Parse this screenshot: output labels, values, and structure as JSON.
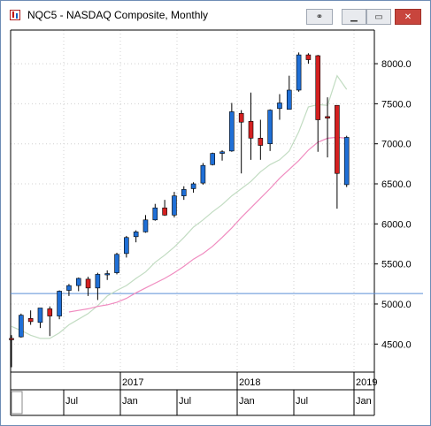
{
  "window": {
    "title": "NQC5 - NASDAQ Composite, Monthly",
    "icons": [
      "chart-app-icon",
      "link-icon",
      "minimize-icon",
      "maximize-icon",
      "close-icon"
    ]
  },
  "colors": {
    "up": "#1f6fd6",
    "down": "#d42020",
    "ma_short": "#c2dcc2",
    "ma_long": "#f08cc0",
    "hline": "#5a8fd8",
    "grid": "#d0d0d0"
  },
  "chart_data": {
    "type": "candlestick",
    "title": "",
    "xlabel": "",
    "ylabel": "",
    "ylim": [
      4150,
      8420
    ],
    "y_ticks": [
      "4500.0",
      "5000.0",
      "5500.0",
      "6000.0",
      "6500.0",
      "7000.0",
      "7500.0",
      "8000.0"
    ],
    "x_year_labels": [
      "2017",
      "2018",
      "2019"
    ],
    "x_month_labels": [
      "Jul",
      "Jan",
      "Jul",
      "Jan",
      "Jul",
      "Jan"
    ],
    "grid": true,
    "horizontal_line": 5130,
    "candles": [
      {
        "o": 4570,
        "h": 4610,
        "l": 4210,
        "c": 4560
      },
      {
        "o": 4590,
        "h": 4880,
        "l": 4580,
        "c": 4860
      },
      {
        "o": 4820,
        "h": 4920,
        "l": 4740,
        "c": 4780
      },
      {
        "o": 4770,
        "h": 4950,
        "l": 4700,
        "c": 4950
      },
      {
        "o": 4940,
        "h": 4970,
        "l": 4600,
        "c": 4850
      },
      {
        "o": 4850,
        "h": 5170,
        "l": 4810,
        "c": 5160
      },
      {
        "o": 5170,
        "h": 5250,
        "l": 5100,
        "c": 5230
      },
      {
        "o": 5230,
        "h": 5330,
        "l": 5160,
        "c": 5320
      },
      {
        "o": 5310,
        "h": 5340,
        "l": 5100,
        "c": 5200
      },
      {
        "o": 5200,
        "h": 5390,
        "l": 5050,
        "c": 5370
      },
      {
        "o": 5380,
        "h": 5420,
        "l": 5300,
        "c": 5380
      },
      {
        "o": 5390,
        "h": 5640,
        "l": 5370,
        "c": 5620
      },
      {
        "o": 5630,
        "h": 5850,
        "l": 5580,
        "c": 5830
      },
      {
        "o": 5840,
        "h": 5920,
        "l": 5770,
        "c": 5900
      },
      {
        "o": 5900,
        "h": 6110,
        "l": 5890,
        "c": 6050
      },
      {
        "o": 6050,
        "h": 6250,
        "l": 6040,
        "c": 6200
      },
      {
        "o": 6200,
        "h": 6300,
        "l": 6100,
        "c": 6110
      },
      {
        "o": 6110,
        "h": 6400,
        "l": 6080,
        "c": 6350
      },
      {
        "o": 6350,
        "h": 6470,
        "l": 6300,
        "c": 6430
      },
      {
        "o": 6440,
        "h": 6520,
        "l": 6390,
        "c": 6500
      },
      {
        "o": 6510,
        "h": 6760,
        "l": 6490,
        "c": 6730
      },
      {
        "o": 6740,
        "h": 6890,
        "l": 6730,
        "c": 6880
      },
      {
        "o": 6880,
        "h": 6920,
        "l": 6790,
        "c": 6900
      },
      {
        "o": 6910,
        "h": 7510,
        "l": 6900,
        "c": 7400
      },
      {
        "o": 7380,
        "h": 7420,
        "l": 6630,
        "c": 7270
      },
      {
        "o": 7280,
        "h": 7640,
        "l": 6800,
        "c": 7070
      },
      {
        "o": 7070,
        "h": 7300,
        "l": 6800,
        "c": 6980
      },
      {
        "o": 7000,
        "h": 7430,
        "l": 6910,
        "c": 7420
      },
      {
        "o": 7440,
        "h": 7620,
        "l": 7300,
        "c": 7510
      },
      {
        "o": 7430,
        "h": 7850,
        "l": 7430,
        "c": 7670
      },
      {
        "o": 7670,
        "h": 8140,
        "l": 7650,
        "c": 8110
      },
      {
        "o": 8110,
        "h": 8130,
        "l": 8000,
        "c": 8050
      },
      {
        "o": 8100,
        "h": 8110,
        "l": 6900,
        "c": 7300
      },
      {
        "o": 7340,
        "h": 7580,
        "l": 6830,
        "c": 7320
      },
      {
        "o": 7480,
        "h": 7480,
        "l": 6190,
        "c": 6630
      },
      {
        "o": 6490,
        "h": 7100,
        "l": 6460,
        "c": 7080
      }
    ],
    "ma_short": [
      4720,
      4670,
      4610,
      4570,
      4570,
      4640,
      4740,
      4810,
      4880,
      4980,
      5100,
      5170,
      5230,
      5320,
      5400,
      5520,
      5610,
      5710,
      5830,
      5960,
      6050,
      6150,
      6240,
      6350,
      6440,
      6530,
      6650,
      6740,
      6800,
      6910,
      7150,
      7460,
      7490,
      7480,
      7850,
      7680
    ],
    "ma_long": [
      null,
      null,
      null,
      null,
      null,
      null,
      4900,
      4920,
      4940,
      4970,
      4990,
      5020,
      5070,
      5140,
      5200,
      5260,
      5320,
      5390,
      5470,
      5560,
      5630,
      5720,
      5830,
      5950,
      6080,
      6200,
      6320,
      6440,
      6570,
      6680,
      6790,
      6920,
      7020,
      7070,
      7080,
      7070
    ]
  }
}
